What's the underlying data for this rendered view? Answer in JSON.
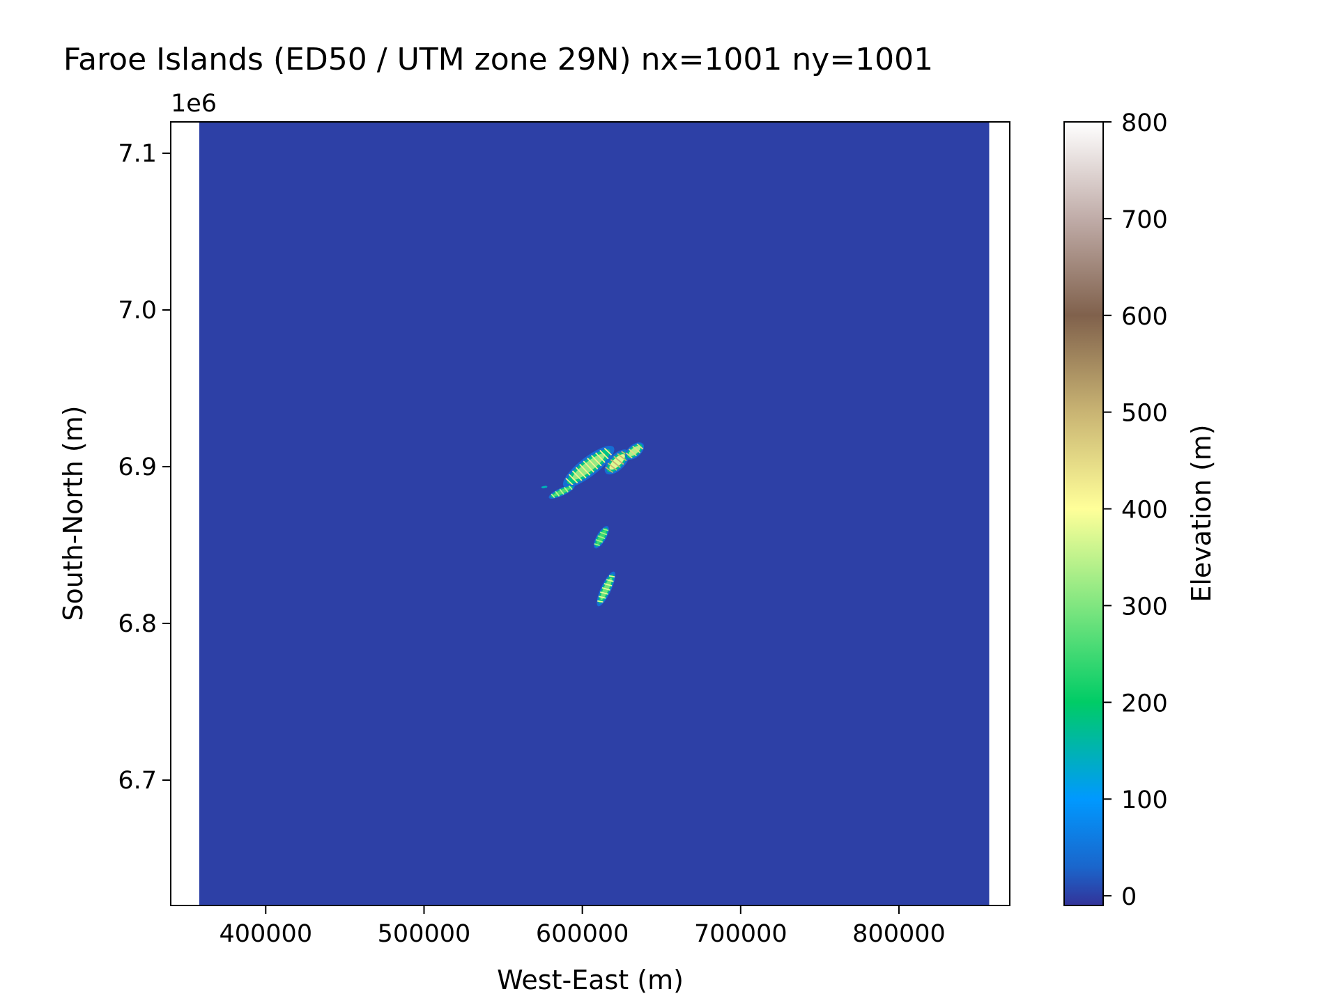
{
  "chart_data": {
    "type": "heatmap",
    "title": "Faroe Islands (ED50 / UTM zone 29N) nx=1001 ny=1001",
    "xlabel": "West-East (m)",
    "ylabel": "South-North (m)",
    "y_offset_label": "1e6",
    "x_ticks": [
      400000,
      500000,
      600000,
      700000,
      800000
    ],
    "x_tick_labels": [
      "400000",
      "500000",
      "600000",
      "700000",
      "800000"
    ],
    "y_ticks": [
      6.7,
      6.8,
      6.9,
      7.0,
      7.1
    ],
    "y_tick_labels": [
      "6.7",
      "6.8",
      "6.9",
      "7.0",
      "7.1"
    ],
    "xlim": [
      340000,
      870000
    ],
    "ylim": [
      6.62,
      7.12
    ],
    "data_extent": {
      "x": [
        358000,
        857000
      ],
      "y": [
        6.62,
        7.12
      ]
    },
    "background_value": 0,
    "colormap": "terrain",
    "colorbar": {
      "label": "Elevation (m)",
      "range": [
        -10,
        800
      ],
      "ticks": [
        0,
        100,
        200,
        300,
        400,
        500,
        600,
        700,
        800
      ],
      "tick_labels": [
        "0",
        "100",
        "200",
        "300",
        "400",
        "500",
        "600",
        "700",
        "800"
      ],
      "color_stops": [
        {
          "value": -10,
          "color": "#333399"
        },
        {
          "value": 30,
          "color": "#1a66cc"
        },
        {
          "value": 100,
          "color": "#0099ff"
        },
        {
          "value": 200,
          "color": "#00cc66"
        },
        {
          "value": 300,
          "color": "#80e680"
        },
        {
          "value": 400,
          "color": "#ffff99"
        },
        {
          "value": 500,
          "color": "#c9b473"
        },
        {
          "value": 600,
          "color": "#80614c"
        },
        {
          "value": 700,
          "color": "#c0aca8"
        },
        {
          "value": 800,
          "color": "#ffffff"
        }
      ]
    },
    "islands": [
      {
        "center": [
          604000,
          6.9
        ],
        "length": 40000,
        "width": 12000,
        "angle_deg": -38,
        "elevation": 420
      },
      {
        "center": [
          622000,
          6.903
        ],
        "length": 20000,
        "width": 10000,
        "angle_deg": -45,
        "elevation": 500
      },
      {
        "center": [
          587000,
          6.884
        ],
        "length": 18000,
        "width": 5000,
        "angle_deg": -25,
        "elevation": 350
      },
      {
        "center": [
          633000,
          6.91
        ],
        "length": 14000,
        "width": 8000,
        "angle_deg": -40,
        "elevation": 450
      },
      {
        "center": [
          612000,
          6.855
        ],
        "length": 16000,
        "width": 6000,
        "angle_deg": -60,
        "elevation": 330
      },
      {
        "center": [
          615000,
          6.822
        ],
        "length": 24000,
        "width": 6500,
        "angle_deg": -65,
        "elevation": 380
      },
      {
        "center": [
          576000,
          6.887
        ],
        "length": 4000,
        "width": 1500,
        "angle_deg": -10,
        "elevation": 150
      }
    ]
  }
}
